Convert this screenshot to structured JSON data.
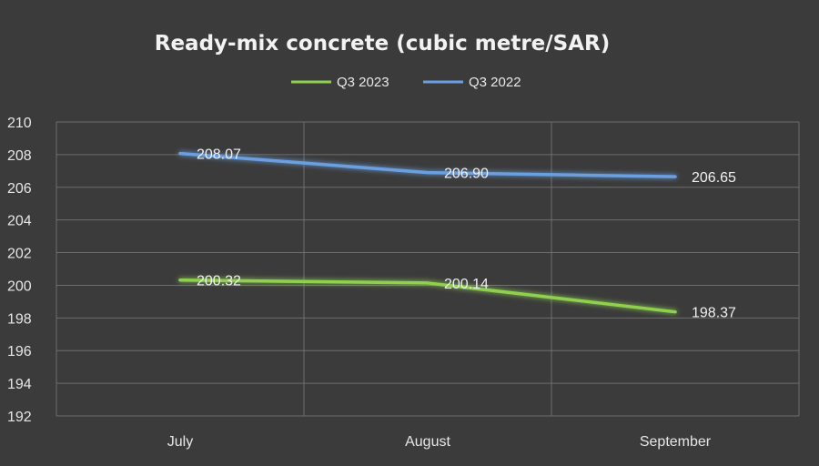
{
  "chart_data": {
    "type": "line",
    "title": "Ready-mix concrete (cubic metre/SAR)",
    "categories": [
      "July",
      "August",
      "September"
    ],
    "series": [
      {
        "name": "Q3 2023",
        "values": [
          200.32,
          200.14,
          198.37
        ],
        "labels": [
          "200.32",
          "200.14",
          "198.37"
        ],
        "color": "#8fd14f"
      },
      {
        "name": "Q3 2022",
        "values": [
          208.07,
          206.9,
          206.65
        ],
        "labels": [
          "208.07",
          "206.90",
          "206.65"
        ],
        "color": "#6a9fe0"
      }
    ],
    "y_ticks": [
      "192",
      "194",
      "196",
      "198",
      "200",
      "202",
      "204",
      "206",
      "208",
      "210"
    ],
    "ylim": [
      192,
      210
    ],
    "grid": true,
    "legend_position": "top"
  }
}
